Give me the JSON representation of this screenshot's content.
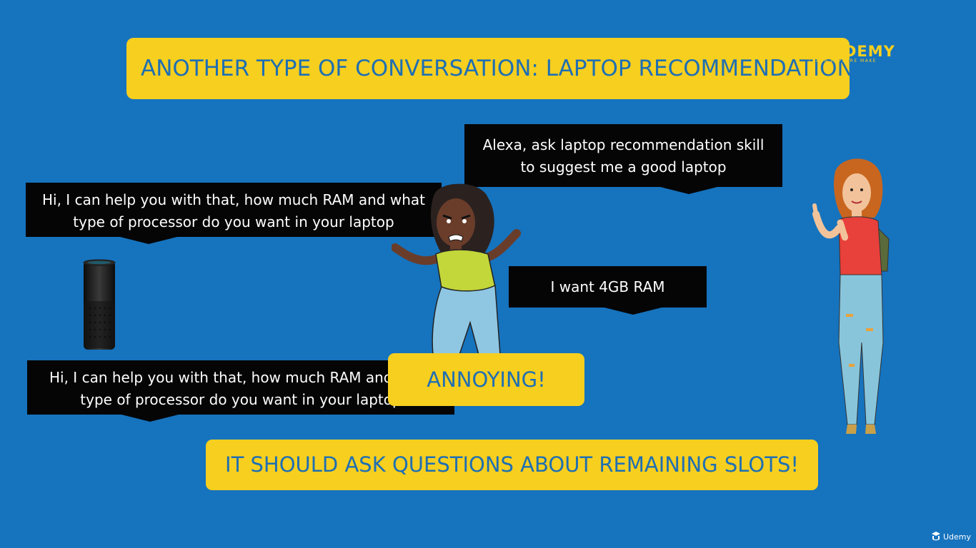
{
  "slide": {
    "title": "ANOTHER TYPE OF CONVERSATION: LAPTOP RECOMMENDATION SKILL",
    "annoying_label": "ANNOYING!",
    "bottom_message": "IT SHOULD ASK QUESTIONS ABOUT REMAINING SLOTS!"
  },
  "logo": {
    "name": "MAKERDEMY",
    "tagline": "LEARN EXPLORE MAKE"
  },
  "bubbles": {
    "user_request": {
      "line1": "Alexa, ask laptop recommendation skill",
      "line2": "to suggest me a good laptop"
    },
    "alexa_reply_1": {
      "line1": "Hi, I can help you with that, how much RAM and what",
      "line2": "type of processor do you want in your laptop"
    },
    "user_answer": {
      "line1": "I want 4GB RAM"
    },
    "alexa_reply_2": {
      "line1": "Hi, I can help you with that, how much RAM and what",
      "line2": "type of processor do you want in your laptop"
    }
  },
  "watermark": {
    "label": "Udemy"
  },
  "colors": {
    "background": "#1673be",
    "accent_yellow": "#f7cf1f",
    "accent_text_blue": "#1f6fb3",
    "bubble": "#050505"
  },
  "icons": {
    "speaker": "echo-speaker-icon",
    "watermark": "udemy-logo-icon"
  }
}
